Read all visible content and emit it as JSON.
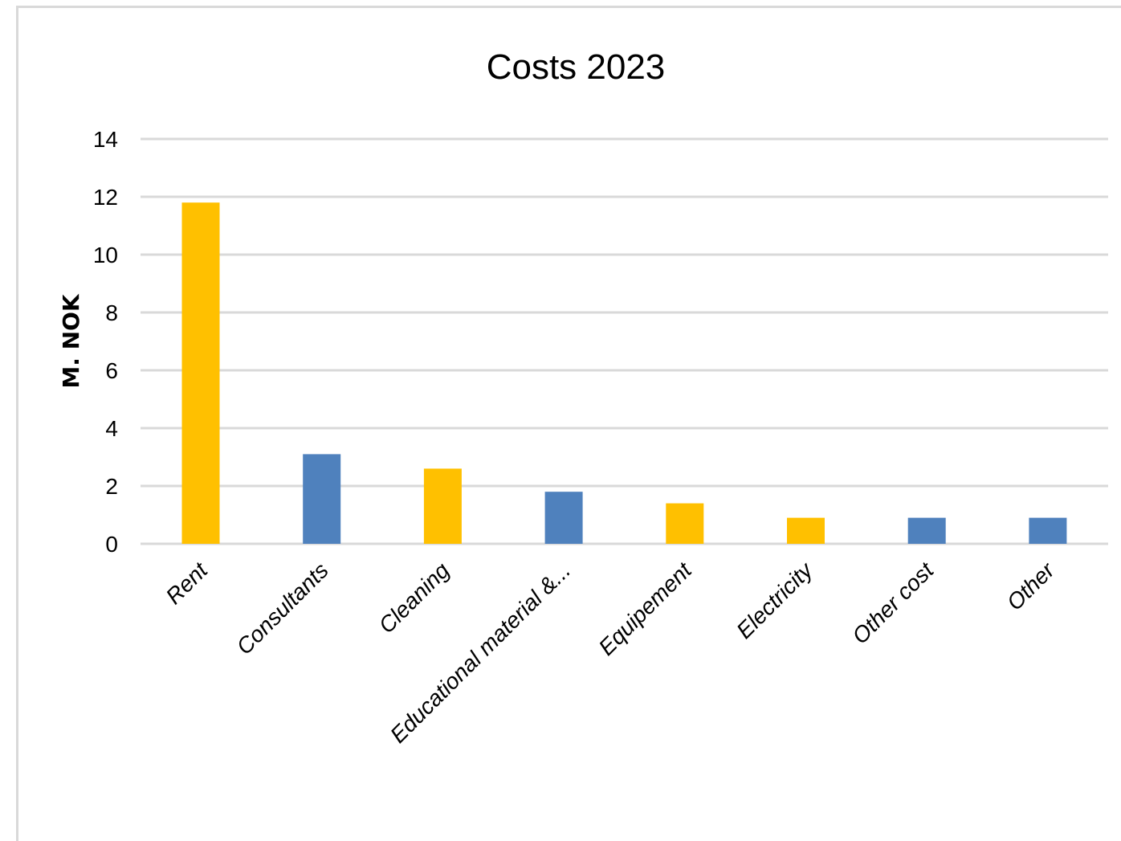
{
  "chart_data": {
    "type": "bar",
    "title": "Costs 2023",
    "xlabel": "",
    "ylabel": "M. NOK",
    "ylim": [
      0,
      14
    ],
    "yticks": [
      0,
      2,
      4,
      6,
      8,
      10,
      12,
      14
    ],
    "grid": true,
    "legend": "none",
    "categories": [
      "Rent",
      "Consultants",
      "Cleaning",
      "Educational material &...",
      "Equipement",
      "Electricity",
      "Other cost",
      "Other"
    ],
    "values": [
      11.8,
      3.1,
      2.6,
      1.8,
      1.4,
      0.9,
      0.9,
      0.9
    ],
    "bar_colors": [
      "#FFC000",
      "#4F81BD",
      "#FFC000",
      "#4F81BD",
      "#FFC000",
      "#FFC000",
      "#4F81BD",
      "#4F81BD"
    ],
    "grid_color": "#d9d9d9"
  }
}
